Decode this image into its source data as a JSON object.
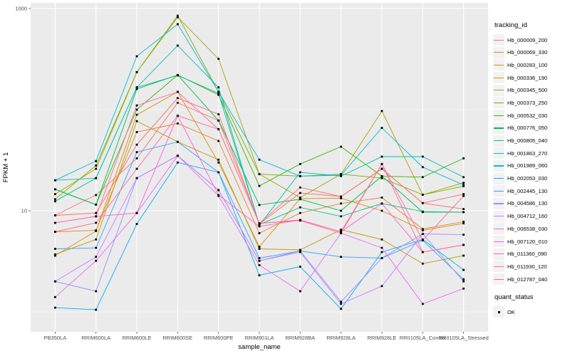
{
  "figure": {
    "background": "#FFFFFF",
    "panel_background": "#EBEBEB",
    "grid_color": "#FFFFFF",
    "axis_text_color": "#4D4D4D",
    "title_color": "#000000",
    "point_color": "#000000",
    "legend_key_background": "#F2F2F2"
  },
  "chart_data": {
    "type": "line",
    "title": "",
    "x_axis": {
      "label": "sample_name",
      "categories": [
        "PB350LA",
        "RRIM600LA",
        "RRIM600LE",
        "RRIM600SE",
        "RRIM600PE",
        "RRIM901LA",
        "RRIM928BA",
        "RRIM928LA",
        "RRIM928LE",
        "RRII105LA_Control",
        "RRII105LA_Stressed"
      ]
    },
    "y_axis": {
      "label": "FPKM + 1",
      "scale": "log10",
      "tick_labels": [
        "1000",
        "10"
      ],
      "tick_values": [
        1000,
        10
      ],
      "minor_tick_values": [
        100,
        1
      ],
      "log_range": [
        -0.197,
        3.056
      ],
      "grid": "on"
    },
    "legend": {
      "position": "right",
      "title": "tracking_id",
      "quant_title": "quant_status",
      "quant_items": [
        {
          "label": "OK"
        }
      ]
    },
    "series": [
      {
        "name": "Hb_000009_200",
        "color": "#F8766D",
        "values": [
          9.0,
          14.3,
          33,
          117,
          78,
          7.5,
          17,
          13.8,
          26,
          11.9,
          10.4
        ]
      },
      {
        "name": "Hb_000069_330",
        "color": "#EA8331",
        "values": [
          6.2,
          6.4,
          60,
          73,
          49,
          6.0,
          9.5,
          11.8,
          13.5,
          6.6,
          7.8
        ]
      },
      {
        "name": "Hb_000283_100",
        "color": "#D89000",
        "values": [
          3.6,
          6.3,
          89,
          150,
          30,
          4.4,
          13.2,
          13.3,
          10.0,
          6.4,
          7.5
        ]
      },
      {
        "name": "Hb_000336_190",
        "color": "#C09B00",
        "values": [
          3.7,
          5.2,
          77,
          48,
          32,
          4.2,
          4.1,
          6.5,
          5.2,
          3.0,
          3.6
        ]
      },
      {
        "name": "Hb_000345_500",
        "color": "#A3A500",
        "values": [
          14.6,
          26,
          235,
          820,
          318,
          23,
          13.5,
          23,
          97,
          14.4,
          18.9
        ]
      },
      {
        "name": "Hb_000373_250",
        "color": "#7CAE00",
        "values": [
          13.0,
          28,
          235,
          850,
          150,
          23,
          22,
          23,
          21,
          14.4,
          17.5
        ]
      },
      {
        "name": "Hb_000532_030",
        "color": "#39B600",
        "values": [
          16.3,
          11.5,
          100,
          220,
          140,
          17.6,
          29,
          43,
          22,
          21.5,
          33
        ]
      },
      {
        "name": "Hb_000776_050",
        "color": "#00BB4E",
        "values": [
          16.3,
          11.5,
          160,
          220,
          78,
          11.4,
          13,
          10,
          22,
          9.7,
          9.7
        ]
      },
      {
        "name": "Hb_000805_040",
        "color": "#00C087",
        "values": [
          12.4,
          21,
          166,
          218,
          145,
          7.3,
          10.8,
          8.8,
          11.8,
          9.8,
          9.7
        ]
      },
      {
        "name": "Hb_001863_270",
        "color": "#00C0B8",
        "values": [
          20,
          21,
          166,
          430,
          166,
          7.2,
          24,
          22,
          34.3,
          34.3,
          21.5
        ]
      },
      {
        "name": "Hb_001989_060",
        "color": "#00BCD8",
        "values": [
          20,
          31,
          337,
          700,
          150,
          32,
          22,
          22.5,
          66,
          27,
          18
        ]
      },
      {
        "name": "Hb_002053_030",
        "color": "#00B0F6",
        "values": [
          1.1,
          1.05,
          7.4,
          30,
          24,
          2.3,
          2.8,
          1.07,
          3.9,
          5.2,
          2.6
        ]
      },
      {
        "name": "Hb_002445_130",
        "color": "#35A2FF",
        "values": [
          4.2,
          4.3,
          38,
          48,
          24,
          3.4,
          4.0,
          3.5,
          3.4,
          5.1,
          2.1
        ]
      },
      {
        "name": "Hb_004586_130",
        "color": "#9590FF",
        "values": [
          2.0,
          1.6,
          21,
          35,
          16,
          3.2,
          4.0,
          1.26,
          3.4,
          5.9,
          2.0
        ]
      },
      {
        "name": "Hb_004712_160",
        "color": "#BF80FF",
        "values": [
          2.0,
          3.5,
          21,
          35,
          16,
          3.2,
          3.9,
          1.2,
          1.8,
          5.9,
          5.8
        ]
      },
      {
        "name": "Hb_006538_030",
        "color": "#E76BF3",
        "values": [
          1.4,
          3.2,
          9.5,
          35,
          14,
          2.9,
          1.6,
          6.0,
          4.3,
          1.2,
          1.7
        ]
      },
      {
        "name": "Hb_007120_010",
        "color": "#FD61D1",
        "values": [
          7.6,
          8.8,
          9.5,
          87,
          14.3,
          7.0,
          8.1,
          6.2,
          11.8,
          3.9,
          4.6
        ]
      },
      {
        "name": "Hb_011360_090",
        "color": "#FF67A4",
        "values": [
          7.6,
          8.8,
          110,
          150,
          64,
          7.5,
          8.1,
          6.2,
          29,
          5.1,
          14
        ]
      },
      {
        "name": "Hb_011930_120",
        "color": "#FF6C92",
        "values": [
          6.2,
          7.6,
          26,
          87,
          64,
          7.5,
          8.0,
          6.0,
          29,
          3.9,
          4.6
        ]
      },
      {
        "name": "Hb_012787_040",
        "color": "#FF6C67",
        "values": [
          9.0,
          9.5,
          45,
          130,
          90,
          7.4,
          15,
          13.8,
          26,
          11.9,
          14.6
        ]
      }
    ]
  }
}
